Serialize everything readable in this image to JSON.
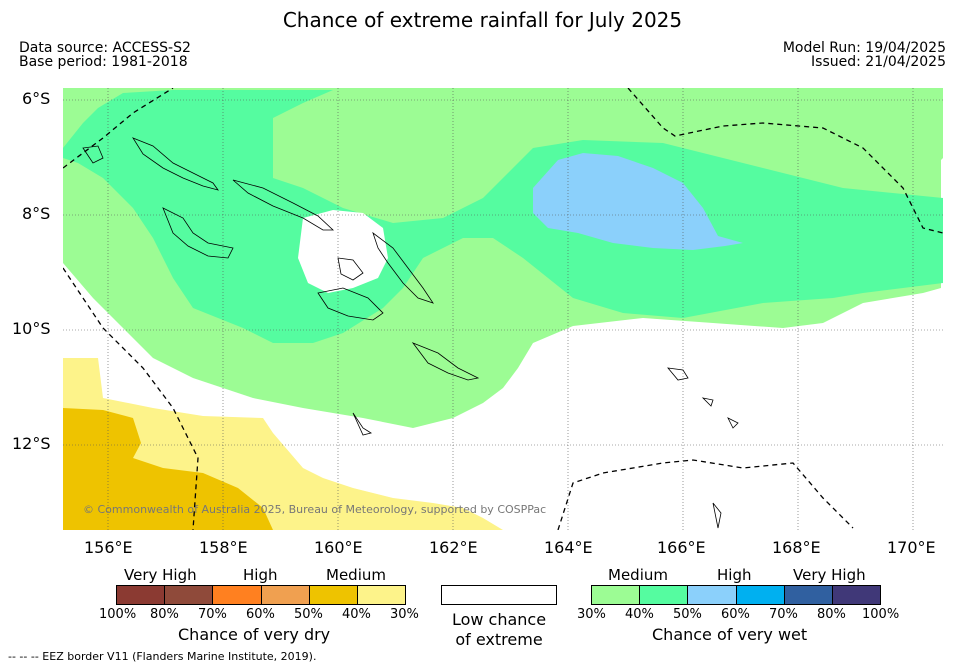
{
  "title": "Chance of extreme rainfall for July 2025",
  "header": {
    "source": "Data source: ACCESS-S2",
    "base": "Base period: 1981-2018",
    "model_run": "Model Run: 19/04/2025",
    "issued": "Issued: 21/04/2025"
  },
  "axes": {
    "lat_labels": [
      "6°S",
      "8°S",
      "10°S",
      "12°S"
    ],
    "lon_labels": [
      "156°E",
      "158°E",
      "160°E",
      "162°E",
      "164°E",
      "166°E",
      "168°E",
      "170°E"
    ]
  },
  "copyright": "© Commonwealth of Australia 2025, Bureau of Meteorology, supported by COSPPac",
  "legend": {
    "dry": {
      "categories": [
        "Very High",
        "High",
        "Medium"
      ],
      "ticks": [
        "100%",
        "80%",
        "70%",
        "60%",
        "50%",
        "40%",
        "30%"
      ],
      "title": "Chance of very dry",
      "colors": [
        "#8b3a32",
        "#8f4a3a",
        "#ff8020",
        "#f0a050",
        "#eec300",
        "#fdf38a"
      ]
    },
    "low": {
      "line1": "Low chance",
      "line2": "of extreme"
    },
    "wet": {
      "categories": [
        "Medium",
        "High",
        "Very High"
      ],
      "ticks": [
        "30%",
        "40%",
        "50%",
        "60%",
        "70%",
        "80%",
        "100%"
      ],
      "title": "Chance of very wet",
      "colors": [
        "#9cfc94",
        "#55fca0",
        "#8bd0fb",
        "#00b0f0",
        "#3060a0",
        "#403878"
      ]
    }
  },
  "footnote": "--  --  -- EEZ border V11 (Flanders Marine Institute, 2019).",
  "colors": {
    "wet_medium": "#9cfc94",
    "wet_medium_high": "#55fca0",
    "wet_high": "#8bd0fb",
    "dry_medium": "#fdf38a",
    "dry_high": "#eec300"
  }
}
